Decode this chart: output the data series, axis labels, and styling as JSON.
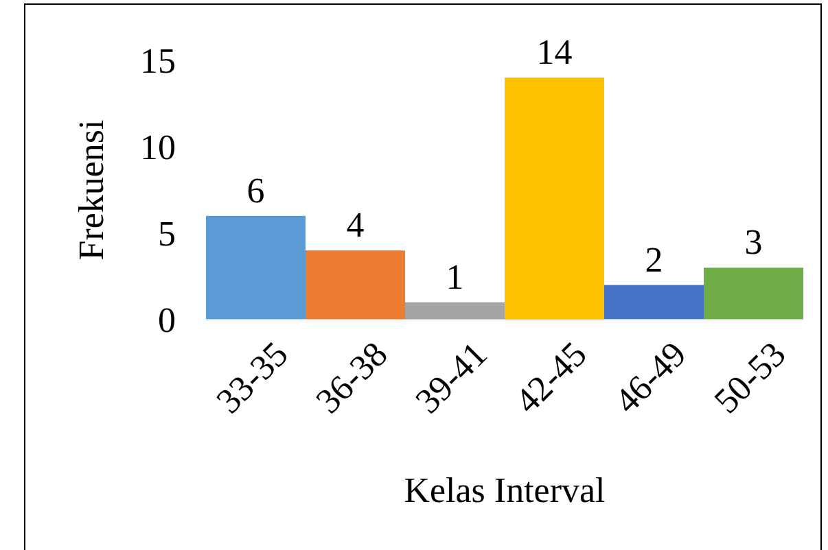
{
  "chart_data": {
    "type": "bar",
    "xlabel": "Kelas Interval",
    "ylabel": "Frekuensi",
    "categories": [
      "33-35",
      "36-38",
      "39-41",
      "42-45",
      "46-49",
      "50-53"
    ],
    "values": [
      6,
      4,
      1,
      14,
      2,
      3
    ],
    "colors": [
      "#5b9bd5",
      "#ed7d31",
      "#a5a5a5",
      "#ffc000",
      "#4472c4",
      "#70ad47"
    ],
    "ylim": [
      0,
      15
    ],
    "yticks": [
      0,
      5,
      10,
      15
    ],
    "data_labels": true,
    "grid": false
  }
}
